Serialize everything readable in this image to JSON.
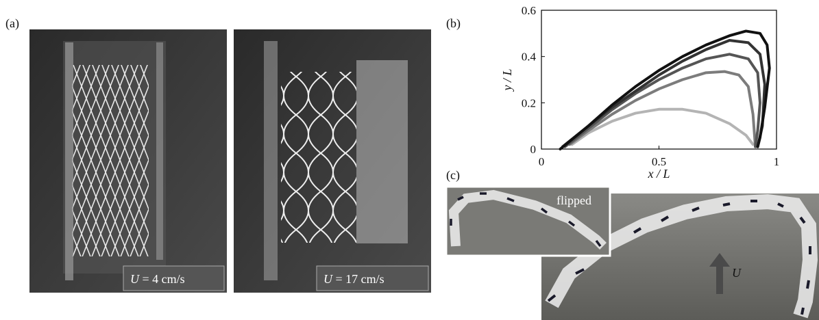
{
  "panel_labels": {
    "a": "(a)",
    "b": "(b)",
    "c": "(c)"
  },
  "photos": [
    {
      "caption": {
        "symbol": "U",
        "text": "= 4 cm/s"
      }
    },
    {
      "caption": {
        "symbol": "U",
        "text": "= 17 cm/s"
      }
    }
  ],
  "inset_label": "flipped",
  "flow_label": "U",
  "chart_data": {
    "type": "line",
    "xlabel": "x / L",
    "ylabel": "y / L",
    "xlim": [
      0,
      1
    ],
    "ylim": [
      0,
      0.6
    ],
    "xticks": [
      0,
      0.5,
      1
    ],
    "yticks": [
      0,
      0.2,
      0.4,
      0.6
    ],
    "series": [
      {
        "color": "#b4b4b4",
        "x": [
          0.13,
          0.2,
          0.3,
          0.4,
          0.5,
          0.6,
          0.7,
          0.8,
          0.87,
          0.9
        ],
        "values": [
          0.02,
          0.07,
          0.12,
          0.155,
          0.172,
          0.172,
          0.155,
          0.11,
          0.06,
          0.02
        ]
      },
      {
        "color": "#7c7c7c",
        "x": [
          0.12,
          0.2,
          0.3,
          0.4,
          0.5,
          0.6,
          0.7,
          0.78,
          0.84,
          0.88,
          0.9,
          0.91
        ],
        "values": [
          0.02,
          0.08,
          0.15,
          0.21,
          0.26,
          0.3,
          0.33,
          0.335,
          0.32,
          0.27,
          0.15,
          0.01
        ]
      },
      {
        "color": "#555555",
        "x": [
          0.1,
          0.2,
          0.3,
          0.4,
          0.5,
          0.6,
          0.7,
          0.8,
          0.88,
          0.92,
          0.93,
          0.92,
          0.91
        ],
        "values": [
          0.01,
          0.09,
          0.17,
          0.24,
          0.3,
          0.35,
          0.39,
          0.41,
          0.39,
          0.33,
          0.2,
          0.08,
          0.01
        ]
      },
      {
        "color": "#333333",
        "x": [
          0.09,
          0.2,
          0.3,
          0.4,
          0.5,
          0.6,
          0.7,
          0.8,
          0.88,
          0.93,
          0.95,
          0.94,
          0.92
        ],
        "values": [
          0.01,
          0.1,
          0.18,
          0.25,
          0.32,
          0.38,
          0.43,
          0.47,
          0.46,
          0.41,
          0.28,
          0.1,
          0.01
        ]
      },
      {
        "color": "#111111",
        "x": [
          0.08,
          0.2,
          0.3,
          0.4,
          0.5,
          0.6,
          0.7,
          0.8,
          0.87,
          0.93,
          0.96,
          0.97,
          0.95,
          0.93,
          0.92
        ],
        "values": [
          0.0,
          0.1,
          0.19,
          0.27,
          0.34,
          0.4,
          0.45,
          0.49,
          0.51,
          0.5,
          0.45,
          0.35,
          0.18,
          0.05,
          0.01
        ]
      }
    ]
  }
}
